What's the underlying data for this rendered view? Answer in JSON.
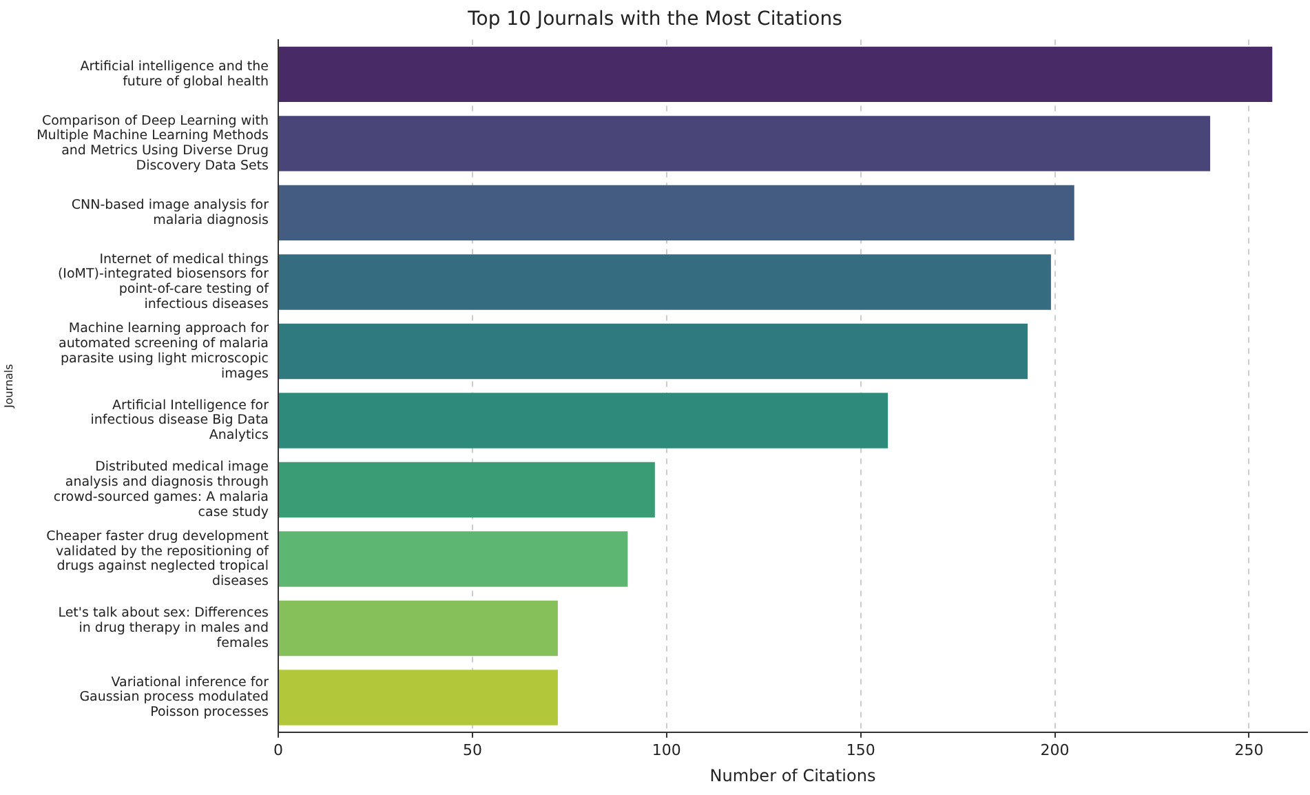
{
  "chart_data": {
    "type": "bar",
    "orientation": "horizontal",
    "title": "Top 10 Journals with the Most Citations",
    "xlabel": "Number of Citations",
    "ylabel": "Journals",
    "categories": [
      "Artificial intelligence and the future of global health",
      "Comparison of Deep Learning with Multiple Machine Learning Methods and Metrics Using Diverse Drug Discovery Data Sets",
      "CNN-based image analysis for malaria diagnosis",
      "Internet of medical things (IoMT)-integrated biosensors for point-of-care testing of infectious diseases",
      "Machine learning approach for automated screening of malaria parasite using light microscopic images",
      "Artificial Intelligence for infectious disease Big Data Analytics",
      "Distributed medical image analysis and diagnosis through crowd-sourced games: A malaria case study",
      "Cheaper faster drug development validated by the repositioning of drugs against neglected tropical diseases",
      "Let's talk about sex: Differences in drug therapy in males and females",
      "Variational inference for Gaussian process modulated Poisson processes"
    ],
    "values": [
      256,
      240,
      205,
      199,
      193,
      157,
      97,
      90,
      72,
      72
    ],
    "colors": [
      "#482a66",
      "#4a4578",
      "#455c82",
      "#366c80",
      "#2e7a7f",
      "#2e8b7b",
      "#3a9c74",
      "#5db671",
      "#86c05a",
      "#b2c83a"
    ],
    "xlim": [
      0,
      265
    ],
    "xticks": [
      0,
      50,
      100,
      150,
      200,
      250
    ],
    "grid": "x"
  }
}
